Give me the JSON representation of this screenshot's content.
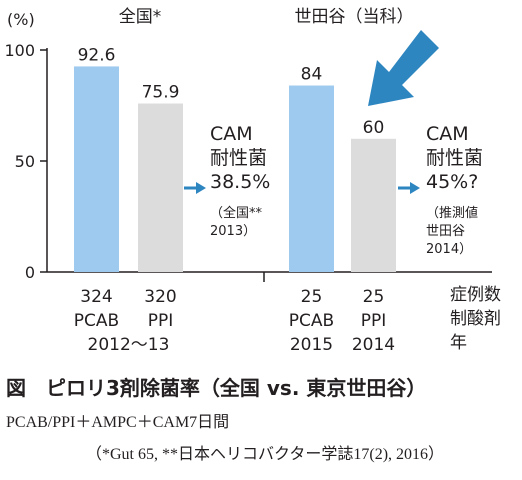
{
  "chart_data": {
    "type": "bar",
    "yunit": "(%)",
    "ylim": [
      0,
      100
    ],
    "yticks": [
      0,
      50,
      100
    ],
    "colors": {
      "pcab": "#9dcaee",
      "ppi": "#dcdcdc",
      "accent": "#2e86c1",
      "text": "#231f20"
    },
    "groups": [
      {
        "title": "全国*",
        "bars": [
          {
            "value": 92.6,
            "label": "92.6",
            "color_key": "pcab",
            "xlabel": [
              "324",
              "PCAB"
            ]
          },
          {
            "value": 75.9,
            "label": "75.9",
            "color_key": "ppi",
            "xlabel": [
              "320",
              "PPI"
            ]
          }
        ],
        "period": "2012～13",
        "annotation": {
          "lines": [
            "CAM",
            "耐性菌",
            "38.5%"
          ],
          "note": [
            "（全国**",
            "2013）"
          ]
        }
      },
      {
        "title": "世田谷（当科）",
        "bars": [
          {
            "value": 84,
            "label": "84",
            "color_key": "pcab",
            "xlabel": [
              "25",
              "PCAB",
              "2015"
            ]
          },
          {
            "value": 60,
            "label": "60",
            "color_key": "ppi",
            "xlabel": [
              "25",
              "PPI",
              "2014"
            ]
          }
        ],
        "annotation": {
          "lines": [
            "CAM",
            "耐性菌",
            "45%?"
          ],
          "note": [
            "（推測値",
            "世田谷",
            "2014）"
          ]
        }
      }
    ],
    "row_legend": [
      "症例数",
      "制酸剤",
      "年"
    ]
  },
  "caption": {
    "title": "図　ピロリ3剤除菌率（全国 vs. 東京世田谷）",
    "line1": "PCAB/PPI＋AMPC＋CAM7日間",
    "line2": "（*Gut 65, **日本ヘリコバクター学誌17(2), 2016）"
  }
}
